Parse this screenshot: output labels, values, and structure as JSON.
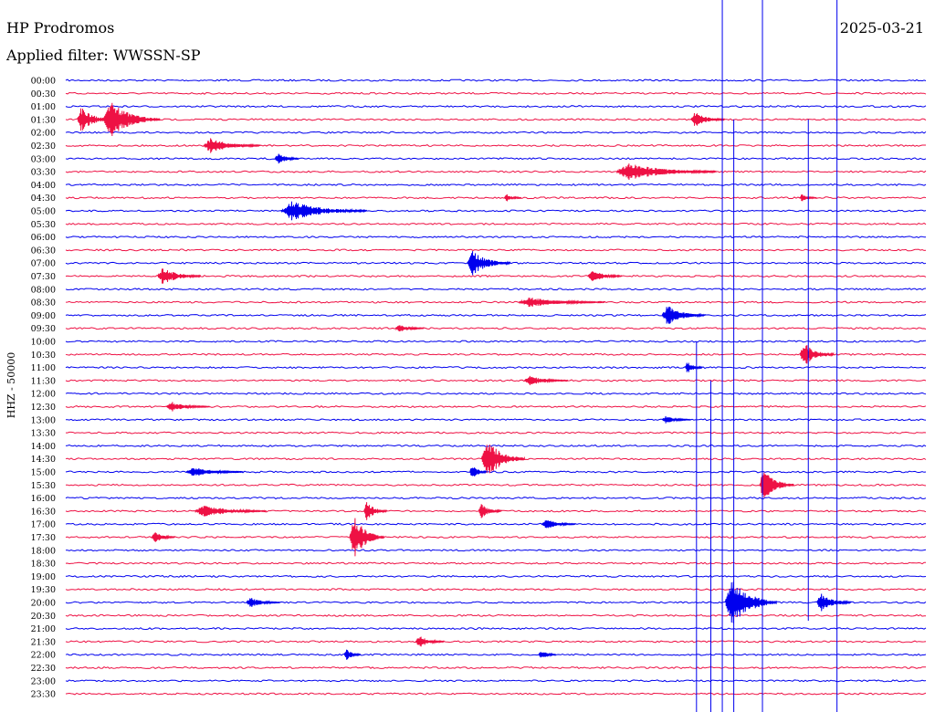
{
  "header": {
    "station": "HP Prodromos",
    "filter_label": "Applied filter: WWSSN-SP",
    "date": "2025-03-21"
  },
  "channel_label": "HHZ - 50000",
  "colors": {
    "trace_a": "#0000ee",
    "trace_b": "#ee1144",
    "background": "#ffffff",
    "text": "#000000"
  },
  "chart_data": {
    "type": "line",
    "title": "HP Prodromos",
    "row_labels": [
      "00:00",
      "00:30",
      "01:00",
      "01:30",
      "02:00",
      "02:30",
      "03:00",
      "03:30",
      "04:00",
      "04:30",
      "05:00",
      "05:30",
      "06:00",
      "06:30",
      "07:00",
      "07:30",
      "08:00",
      "08:30",
      "09:00",
      "09:30",
      "10:00",
      "10:30",
      "11:00",
      "11:30",
      "12:00",
      "12:30",
      "13:00",
      "13:30",
      "14:00",
      "14:30",
      "15:00",
      "15:30",
      "16:00",
      "16:30",
      "17:00",
      "17:30",
      "18:00",
      "18:30",
      "19:00",
      "19:30",
      "20:00",
      "20:30",
      "21:00",
      "21:30",
      "22:00",
      "22:30",
      "23:00",
      "23:30"
    ],
    "row_color_cycle": [
      "blue",
      "red"
    ],
    "x_range_minutes": [
      0,
      30
    ],
    "events": [
      {
        "row": "01:30",
        "minute": 0.4,
        "amp": 1.0,
        "dur": 1.2
      },
      {
        "row": "01:30",
        "minute": 1.3,
        "amp": 1.5,
        "dur": 2.0
      },
      {
        "row": "01:30",
        "minute": 21.8,
        "amp": 0.6,
        "dur": 1.2
      },
      {
        "row": "02:30",
        "minute": 4.8,
        "amp": 0.6,
        "dur": 2.0
      },
      {
        "row": "03:00",
        "minute": 7.3,
        "amp": 0.5,
        "dur": 0.8
      },
      {
        "row": "03:30",
        "minute": 19.2,
        "amp": 0.7,
        "dur": 3.5
      },
      {
        "row": "04:30",
        "minute": 15.3,
        "amp": 0.3,
        "dur": 0.6
      },
      {
        "row": "04:30",
        "minute": 25.6,
        "amp": 0.3,
        "dur": 0.6
      },
      {
        "row": "05:00",
        "minute": 7.5,
        "amp": 0.8,
        "dur": 3.0
      },
      {
        "row": "07:00",
        "minute": 14.0,
        "amp": 1.0,
        "dur": 1.5
      },
      {
        "row": "07:30",
        "minute": 3.2,
        "amp": 0.7,
        "dur": 1.5
      },
      {
        "row": "07:30",
        "minute": 18.2,
        "amp": 0.5,
        "dur": 1.2
      },
      {
        "row": "08:30",
        "minute": 15.8,
        "amp": 0.4,
        "dur": 3.0
      },
      {
        "row": "09:00",
        "minute": 20.8,
        "amp": 0.8,
        "dur": 1.5
      },
      {
        "row": "09:30",
        "minute": 11.5,
        "amp": 0.3,
        "dur": 1.0
      },
      {
        "row": "10:30",
        "minute": 25.6,
        "amp": 1.0,
        "dur": 1.2
      },
      {
        "row": "11:00",
        "minute": 21.6,
        "amp": 0.6,
        "dur": 0.6
      },
      {
        "row": "11:30",
        "minute": 16.0,
        "amp": 0.4,
        "dur": 1.5
      },
      {
        "row": "12:30",
        "minute": 3.5,
        "amp": 0.4,
        "dur": 1.5
      },
      {
        "row": "13:00",
        "minute": 20.8,
        "amp": 0.3,
        "dur": 1.0
      },
      {
        "row": "14:30",
        "minute": 14.5,
        "amp": 1.6,
        "dur": 1.5
      },
      {
        "row": "15:00",
        "minute": 4.2,
        "amp": 0.4,
        "dur": 2.0
      },
      {
        "row": "15:00",
        "minute": 14.1,
        "amp": 0.6,
        "dur": 0.6
      },
      {
        "row": "15:30",
        "minute": 24.2,
        "amp": 1.4,
        "dur": 1.2
      },
      {
        "row": "16:30",
        "minute": 4.5,
        "amp": 0.5,
        "dur": 2.5
      },
      {
        "row": "16:30",
        "minute": 10.4,
        "amp": 0.8,
        "dur": 0.8
      },
      {
        "row": "16:30",
        "minute": 14.4,
        "amp": 0.6,
        "dur": 0.8
      },
      {
        "row": "17:00",
        "minute": 16.6,
        "amp": 0.4,
        "dur": 1.2
      },
      {
        "row": "17:30",
        "minute": 3.0,
        "amp": 0.5,
        "dur": 0.8
      },
      {
        "row": "17:30",
        "minute": 9.9,
        "amp": 1.8,
        "dur": 1.2
      },
      {
        "row": "20:00",
        "minute": 6.3,
        "amp": 0.4,
        "dur": 1.2
      },
      {
        "row": "20:00",
        "minute": 23.0,
        "amp": 2.0,
        "dur": 1.8
      },
      {
        "row": "20:00",
        "minute": 26.2,
        "amp": 0.8,
        "dur": 1.2
      },
      {
        "row": "21:30",
        "minute": 12.2,
        "amp": 0.5,
        "dur": 1.0
      },
      {
        "row": "22:00",
        "minute": 9.7,
        "amp": 0.5,
        "dur": 0.6
      },
      {
        "row": "22:00",
        "minute": 16.5,
        "amp": 0.4,
        "dur": 0.6
      }
    ],
    "vertical_spikes": [
      {
        "minute": 22.0,
        "from_row": "10:00",
        "to_row": "23:30",
        "color": "blue"
      },
      {
        "minute": 22.5,
        "from_row": "11:30",
        "to_row": "23:30",
        "color": "blue"
      },
      {
        "minute": 22.9,
        "from_row": "00:00",
        "to_row": "23:30",
        "color": "blue"
      },
      {
        "minute": 23.3,
        "from_row": "01:30",
        "to_row": "23:30",
        "color": "blue"
      },
      {
        "minute": 24.3,
        "from_row": "00:00",
        "to_row": "23:30",
        "color": "blue"
      },
      {
        "minute": 25.9,
        "from_row": "01:30",
        "to_row": "20:00",
        "color": "blue"
      },
      {
        "minute": 26.9,
        "from_row": "00:00",
        "to_row": "23:30",
        "color": "blue"
      }
    ]
  }
}
